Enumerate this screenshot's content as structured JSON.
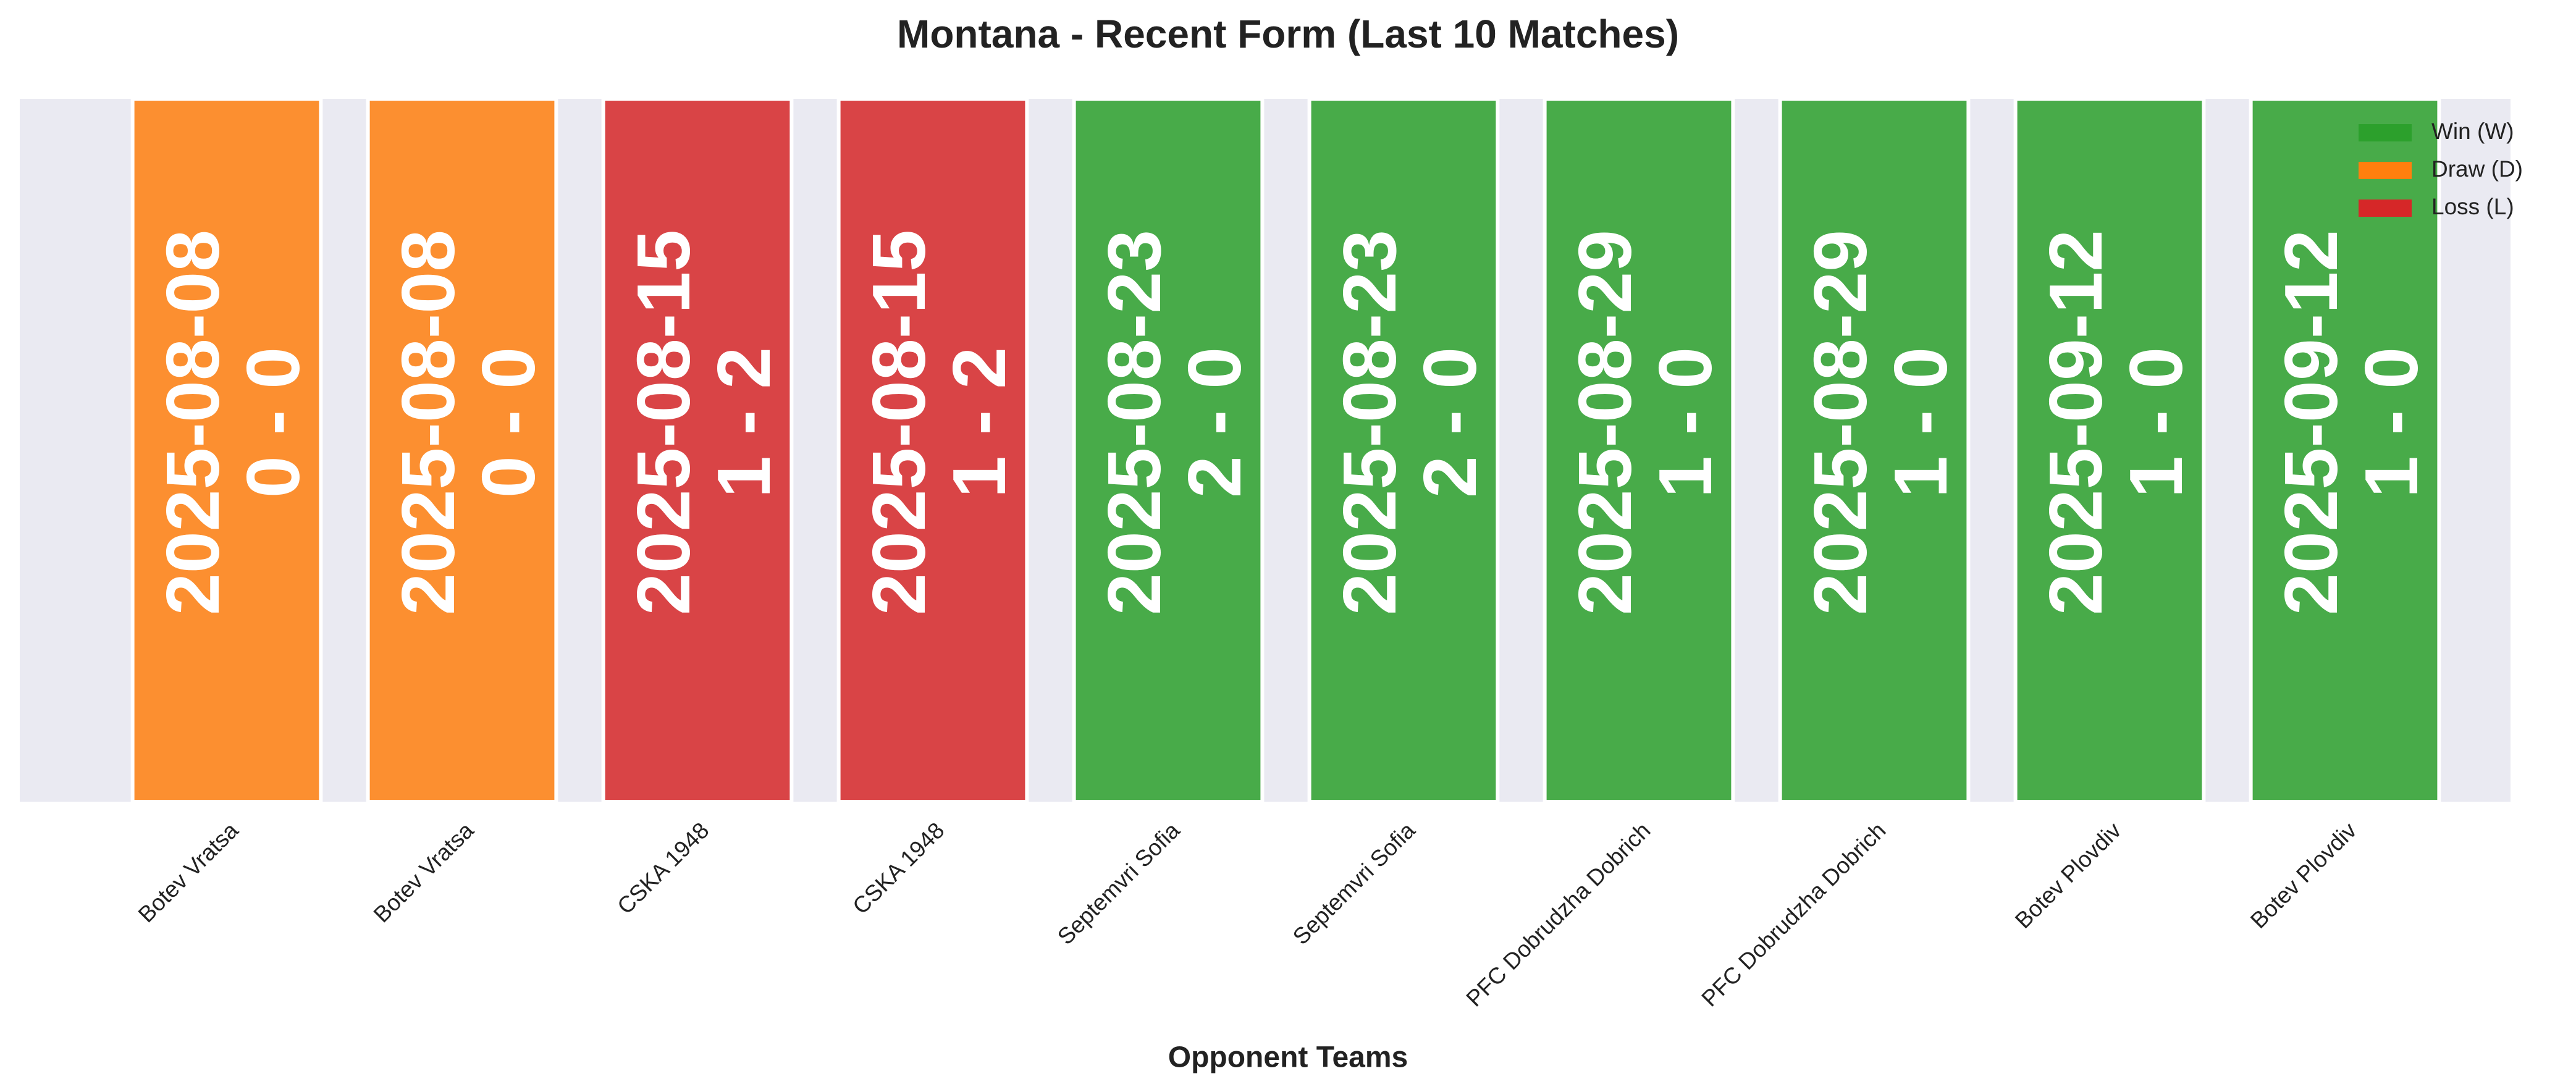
{
  "chart_data": {
    "type": "bar",
    "title": "Montana - Recent Form (Last 10 Matches)",
    "x_label": "Opponent Teams",
    "categories": [
      "Botev Vratsa",
      "Botev Vratsa",
      "CSKA 1948",
      "CSKA 1948",
      "Septemvri Sofia",
      "Septemvri Sofia",
      "PFC Dobrudzha Dobrich",
      "PFC Dobrudzha Dobrich",
      "Botev Plovdiv",
      "Botev Plovdiv"
    ],
    "values": [
      1,
      1,
      1,
      1,
      1,
      1,
      1,
      1,
      1,
      1
    ],
    "dates": [
      "2025-08-08",
      "2025-08-08",
      "2025-08-15",
      "2025-08-15",
      "2025-08-23",
      "2025-08-23",
      "2025-08-29",
      "2025-08-29",
      "2025-09-12",
      "2025-09-12"
    ],
    "scores": [
      "0 - 0",
      "0 - 0",
      "1 - 2",
      "1 - 2",
      "2 - 0",
      "2 - 0",
      "1 - 0",
      "1 - 0",
      "1 - 0",
      "1 - 0"
    ],
    "results": [
      "D",
      "D",
      "L",
      "L",
      "W",
      "W",
      "W",
      "W",
      "W",
      "W"
    ],
    "ylim": [
      0,
      1
    ],
    "legend_position": "upper right",
    "legend": [
      {
        "name": "Win (W)",
        "result": "W",
        "color": "#2ca02c"
      },
      {
        "name": "Draw (D)",
        "result": "D",
        "color": "#ff7f0e"
      },
      {
        "name": "Loss (L)",
        "result": "L",
        "color": "#d62728"
      }
    ]
  }
}
